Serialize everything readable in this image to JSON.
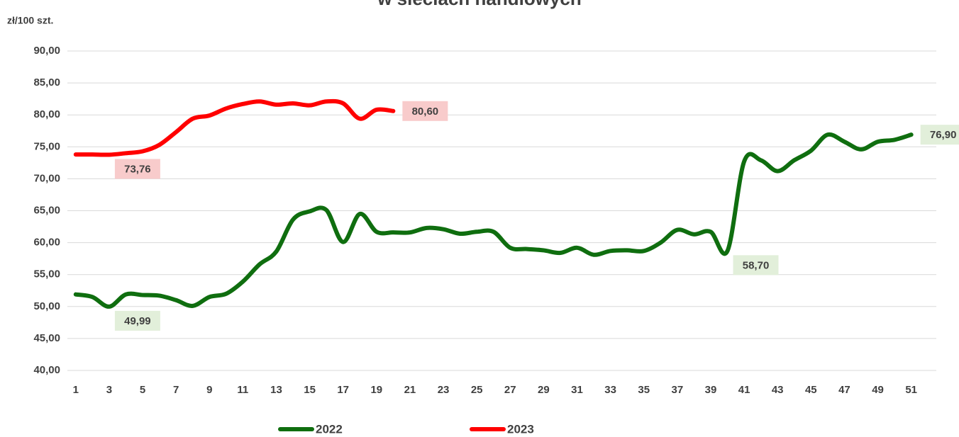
{
  "chart_data": {
    "type": "line",
    "title": "w sieciach handlowych",
    "y_label": "zł/100 szt.",
    "categories": [
      1,
      null,
      3,
      null,
      5,
      null,
      7,
      null,
      9,
      null,
      11,
      null,
      13,
      null,
      15,
      null,
      17,
      null,
      19,
      null,
      21,
      null,
      23,
      null,
      25,
      null,
      27,
      null,
      29,
      null,
      31,
      null,
      33,
      null,
      35,
      null,
      37,
      null,
      39,
      null,
      41,
      null,
      43,
      null,
      45,
      null,
      47,
      null,
      49,
      null,
      51,
      null
    ],
    "series": [
      {
        "name": "2022",
        "color": "#0f6e0f",
        "values": [
          51.9,
          51.5,
          49.99,
          51.9,
          51.8,
          51.7,
          51.0,
          50.1,
          51.5,
          52.0,
          53.9,
          56.6,
          58.6,
          63.6,
          64.9,
          65.1,
          60.1,
          64.5,
          61.7,
          61.6,
          61.6,
          62.3,
          62.1,
          61.4,
          61.7,
          61.7,
          59.2,
          59.0,
          58.8,
          58.4,
          59.2,
          58.1,
          58.7,
          58.8,
          58.7,
          60.0,
          62.0,
          61.3,
          61.7,
          58.7,
          72.7,
          72.9,
          71.2,
          72.9,
          74.4,
          76.9,
          75.8,
          74.6,
          75.8,
          76.1,
          76.9,
          null
        ],
        "value_labels": [
          null,
          null,
          "49,99",
          null,
          null,
          null,
          null,
          null,
          null,
          null,
          null,
          null,
          null,
          null,
          null,
          null,
          null,
          null,
          null,
          null,
          null,
          null,
          null,
          null,
          null,
          null,
          null,
          null,
          null,
          null,
          null,
          null,
          null,
          null,
          null,
          null,
          null,
          null,
          null,
          "58,70",
          null,
          null,
          null,
          null,
          null,
          null,
          null,
          null,
          null,
          null,
          "76,90",
          null
        ]
      },
      {
        "name": "2023",
        "color": "#ff0000",
        "values": [
          73.8,
          73.8,
          73.76,
          74.0,
          74.3,
          75.3,
          77.3,
          79.4,
          79.9,
          81.0,
          81.7,
          82.1,
          81.6,
          81.8,
          81.5,
          82.1,
          81.8,
          79.4,
          80.8,
          80.6,
          null,
          null,
          null,
          null,
          null,
          null,
          null,
          null,
          null,
          null,
          null,
          null,
          null,
          null,
          null,
          null,
          null,
          null,
          null,
          null,
          null,
          null,
          null,
          null,
          null,
          null,
          null,
          null,
          null,
          null,
          null,
          null
        ],
        "value_labels": [
          null,
          null,
          "73,76",
          null,
          null,
          null,
          null,
          null,
          null,
          null,
          null,
          null,
          null,
          null,
          null,
          null,
          null,
          null,
          null,
          "80,60",
          null,
          null,
          null,
          null,
          null,
          null,
          null,
          null,
          null,
          null,
          null,
          null,
          null,
          null,
          null,
          null,
          null,
          null,
          null,
          null,
          null,
          null,
          null,
          null,
          null,
          null,
          null,
          null,
          null,
          null,
          null,
          null
        ]
      }
    ],
    "ylim": [
      40,
      90
    ],
    "yticks": [
      {
        "value": 40,
        "label": "40,00"
      },
      {
        "value": 45,
        "label": "45,00"
      },
      {
        "value": 50,
        "label": "50,00"
      },
      {
        "value": 55,
        "label": "55,00"
      },
      {
        "value": 60,
        "label": "60,00"
      },
      {
        "value": 65,
        "label": "65,00"
      },
      {
        "value": 70,
        "label": "70,00"
      },
      {
        "value": 75,
        "label": "75,00"
      },
      {
        "value": 80,
        "label": "80,00"
      },
      {
        "value": 85,
        "label": "85,00"
      },
      {
        "value": 90,
        "label": "90,00"
      }
    ],
    "grid": true,
    "legend": "bottom"
  }
}
